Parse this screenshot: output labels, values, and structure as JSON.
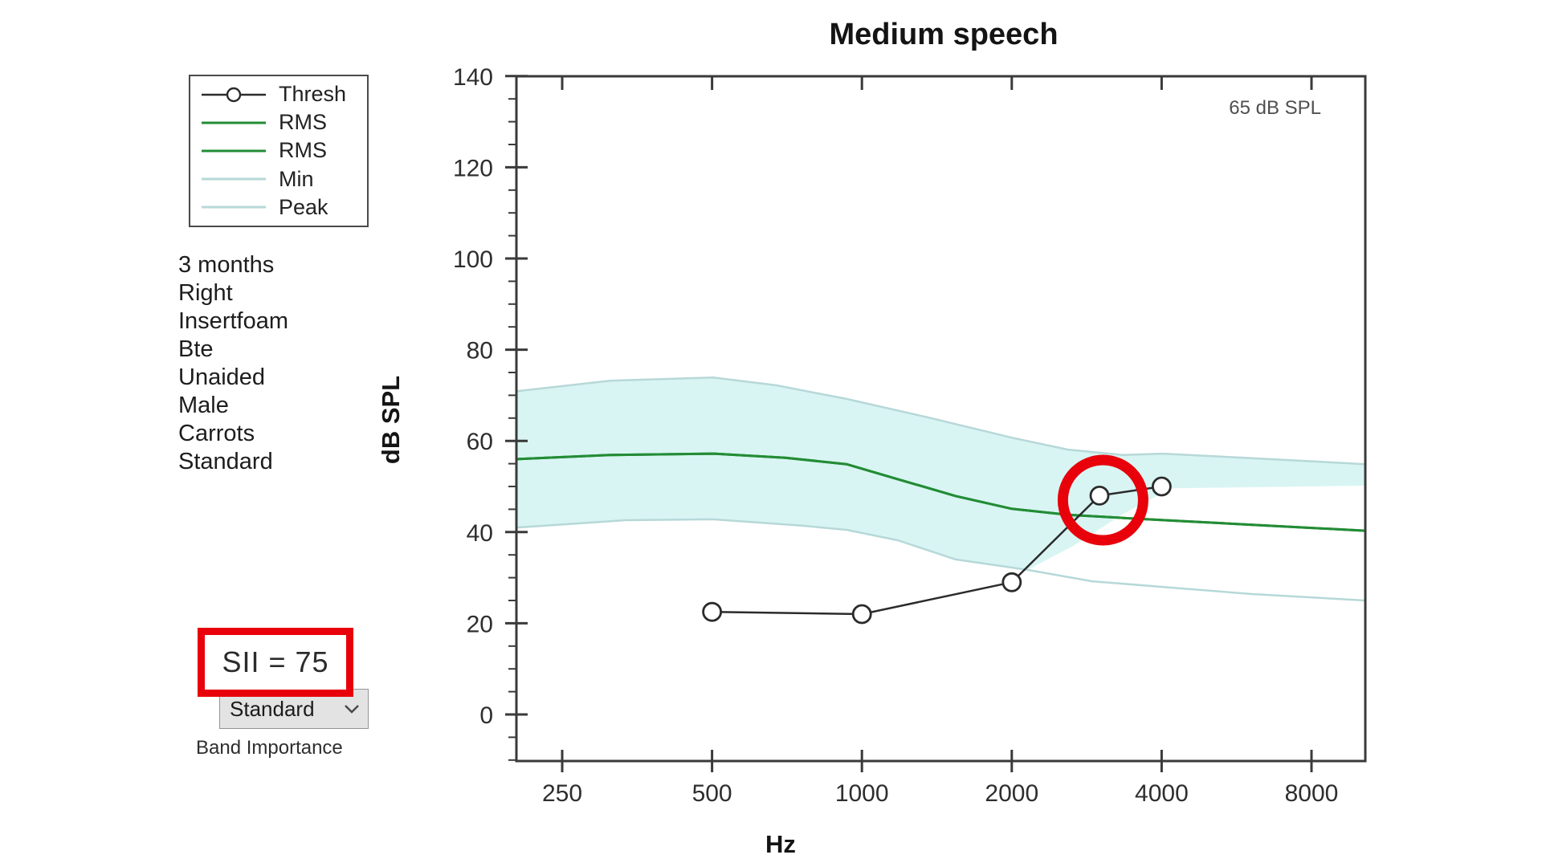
{
  "title": "Medium speech",
  "legend": {
    "items": [
      {
        "label": "Thresh",
        "swatch": "line-circle",
        "color": "#2b2b2b"
      },
      {
        "label": "RMS",
        "swatch": "line",
        "color": "#238c35"
      },
      {
        "label": "RMS",
        "swatch": "line",
        "color": "#238c35"
      },
      {
        "label": "Min",
        "swatch": "line",
        "color": "#b7d8d8"
      },
      {
        "label": "Peak",
        "swatch": "line",
        "color": "#b7d8d8"
      }
    ]
  },
  "side_panel": {
    "lines": [
      "3 months",
      "Right",
      "Insertfoam",
      "Bte",
      "Unaided",
      "Male",
      "Carrots",
      "Standard"
    ]
  },
  "sii": {
    "text": "SII = 75",
    "box_color": "#e8000b"
  },
  "band_importance": {
    "value": "Standard",
    "label": "Band Importance"
  },
  "chart_data": {
    "type": "line",
    "title": "Medium speech",
    "xlabel": "Hz",
    "ylabel": "dB SPL",
    "annotation": "65 dB SPL",
    "x_scale": "log2",
    "x_ticks": [
      250,
      500,
      1000,
      2000,
      4000,
      8000
    ],
    "y_ticks": [
      140,
      120,
      100,
      80,
      60,
      40,
      20,
      0
    ],
    "y_minor_step": 5,
    "ylim": [
      -10,
      140
    ],
    "xlim": [
      203,
      10300
    ],
    "grid": false,
    "legend_position": "outside-left",
    "band": {
      "fill": "#d8f5f3",
      "top_points": [
        [
          203,
          70.9
        ],
        [
          312,
          73.2
        ],
        [
          502,
          73.9
        ],
        [
          672,
          72.2
        ],
        [
          931,
          69.2
        ],
        [
          1363,
          65.1
        ],
        [
          2000,
          60.7
        ],
        [
          2590,
          58.1
        ],
        [
          3350,
          56.9
        ],
        [
          4023,
          57.2
        ],
        [
          5852,
          56.3
        ],
        [
          10250,
          54.9
        ]
      ],
      "bottom_points": [
        [
          203,
          41.0
        ],
        [
          335,
          42.6
        ],
        [
          502,
          42.8
        ],
        [
          757,
          41.4
        ],
        [
          931,
          40.5
        ],
        [
          1180,
          38.2
        ],
        [
          1543,
          34.0
        ],
        [
          2152,
          31.7
        ],
        [
          2661,
          37.0
        ],
        [
          3350,
          44.0
        ],
        [
          4181,
          49.6
        ],
        [
          10250,
          50.2
        ]
      ]
    },
    "series": [
      {
        "name": "Peak",
        "style": "line",
        "color": "#b7d8d8",
        "width": 2.5,
        "points": [
          [
            203,
            70.9
          ],
          [
            312,
            73.2
          ],
          [
            502,
            73.9
          ],
          [
            672,
            72.2
          ],
          [
            931,
            69.2
          ],
          [
            1363,
            65.1
          ],
          [
            2000,
            60.7
          ],
          [
            2590,
            58.1
          ],
          [
            3350,
            56.9
          ],
          [
            4023,
            57.2
          ],
          [
            5852,
            56.3
          ],
          [
            10250,
            54.9
          ]
        ]
      },
      {
        "name": "Min",
        "style": "line",
        "color": "#b7d8d8",
        "width": 2.5,
        "points": [
          [
            203,
            41.0
          ],
          [
            335,
            42.6
          ],
          [
            502,
            42.8
          ],
          [
            757,
            41.4
          ],
          [
            931,
            40.5
          ],
          [
            1180,
            38.2
          ],
          [
            1543,
            34.0
          ],
          [
            2152,
            31.7
          ],
          [
            2901,
            29.2
          ],
          [
            4430,
            27.6
          ],
          [
            6080,
            26.4
          ],
          [
            10250,
            25.0
          ]
        ]
      },
      {
        "name": "RMS",
        "style": "line",
        "color": "#238c35",
        "width": 3,
        "points": [
          [
            203,
            56.0
          ],
          [
            312,
            56.9
          ],
          [
            502,
            57.2
          ],
          [
            702,
            56.3
          ],
          [
            931,
            54.9
          ],
          [
            1180,
            51.6
          ],
          [
            1543,
            47.9
          ],
          [
            2000,
            45.1
          ],
          [
            2590,
            43.8
          ],
          [
            3350,
            43.1
          ],
          [
            4430,
            42.4
          ],
          [
            6080,
            41.6
          ],
          [
            10250,
            40.3
          ]
        ]
      },
      {
        "name": "RMS",
        "style": "line",
        "color": "#238c35",
        "width": 3,
        "points": [
          [
            203,
            56.0
          ],
          [
            312,
            56.9
          ],
          [
            502,
            57.2
          ],
          [
            702,
            56.3
          ],
          [
            931,
            54.9
          ],
          [
            1180,
            51.6
          ],
          [
            1543,
            47.9
          ],
          [
            2000,
            45.1
          ],
          [
            2590,
            43.8
          ],
          [
            3350,
            43.1
          ],
          [
            4430,
            42.4
          ],
          [
            6080,
            41.6
          ],
          [
            10250,
            40.3
          ]
        ]
      },
      {
        "name": "Thresh",
        "style": "marker-line",
        "color": "#2b2b2b",
        "width": 2.5,
        "marker_radius": 11,
        "points": [
          [
            500,
            22.5
          ],
          [
            1000,
            22.0
          ],
          [
            2000,
            29.0
          ],
          [
            3000,
            48.0
          ],
          [
            4000,
            50.0
          ]
        ]
      }
    ],
    "highlight_circle": {
      "x_hz": 3050,
      "y_db": 47,
      "radius_px": 50,
      "stroke_px": 13,
      "color": "#e8000b"
    }
  }
}
